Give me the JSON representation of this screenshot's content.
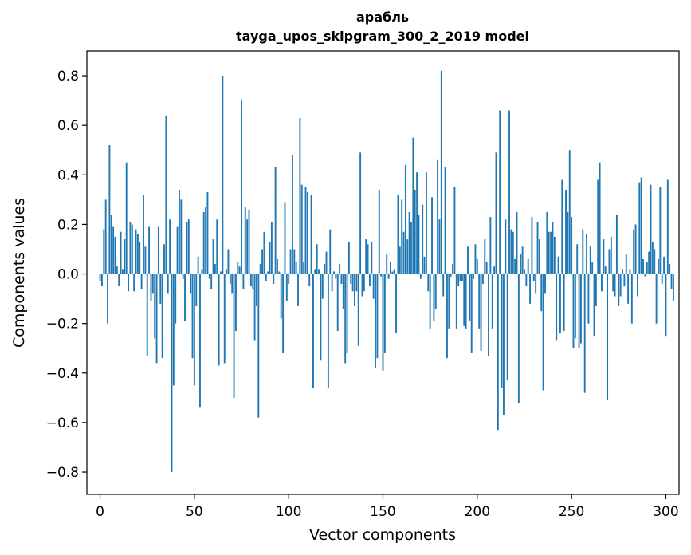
{
  "chart_data": {
    "type": "bar",
    "title": "арабль",
    "subtitle": "tayga_upos_skipgram_300_2_2019 model",
    "xlabel": "Vector components",
    "ylabel": "Components values",
    "xlim": [
      -7,
      307
    ],
    "ylim": [
      -0.89,
      0.9
    ],
    "xticks": [
      0,
      50,
      100,
      150,
      200,
      250,
      300
    ],
    "xtick_labels": [
      "0",
      "50",
      "100",
      "150",
      "200",
      "250",
      "300"
    ],
    "yticks": [
      -0.8,
      -0.6,
      -0.4,
      -0.2,
      0.0,
      0.2,
      0.4,
      0.6,
      0.8
    ],
    "ytick_labels": [
      "−0.8",
      "−0.6",
      "−0.4",
      "−0.2",
      "0.0",
      "0.2",
      "0.4",
      "0.6",
      "0.8"
    ],
    "grid": false,
    "bar_color": "#1f77b4",
    "series": [
      {
        "values": [
          -0.03,
          -0.05,
          0.18,
          0.3,
          -0.2,
          0.52,
          0.24,
          0.19,
          0.15,
          0.03,
          -0.05,
          0.17,
          0.02,
          0.14,
          0.45,
          -0.07,
          0.21,
          0.2,
          -0.07,
          0.18,
          0.16,
          0.13,
          -0.06,
          0.32,
          0.11,
          -0.33,
          0.19,
          -0.11,
          -0.08,
          -0.26,
          -0.36,
          0.19,
          -0.12,
          -0.34,
          0.12,
          0.64,
          -0.08,
          0.22,
          -0.8,
          -0.45,
          -0.2,
          0.19,
          0.34,
          0.3,
          -0.02,
          -0.19,
          0.21,
          0.22,
          -0.08,
          -0.34,
          -0.45,
          -0.13,
          0.07,
          -0.54,
          0.02,
          0.25,
          0.27,
          0.33,
          -0.02,
          -0.06,
          0.14,
          0.04,
          0.22,
          -0.37,
          0.01,
          0.8,
          -0.36,
          0.02,
          0.1,
          -0.04,
          -0.08,
          -0.5,
          -0.23,
          0.05,
          0.03,
          0.7,
          -0.06,
          0.27,
          0.22,
          0.26,
          -0.05,
          -0.06,
          -0.27,
          -0.13,
          -0.58,
          0.04,
          0.1,
          0.17,
          -0.03,
          0.01,
          0.13,
          0.21,
          -0.04,
          0.43,
          0.06,
          0.01,
          -0.18,
          -0.32,
          0.29,
          -0.11,
          -0.04,
          0.1,
          0.48,
          0.1,
          0.05,
          -0.13,
          0.63,
          0.36,
          0.05,
          0.35,
          0.33,
          -0.05,
          0.32,
          -0.46,
          0.02,
          0.12,
          0.02,
          -0.35,
          -0.1,
          0.04,
          0.09,
          -0.46,
          0.18,
          -0.07,
          0.01,
          -0.02,
          -0.23,
          0.04,
          -0.04,
          -0.14,
          -0.36,
          -0.32,
          0.13,
          -0.04,
          -0.07,
          -0.13,
          -0.07,
          -0.29,
          0.49,
          -0.09,
          -0.07,
          0.14,
          0.12,
          -0.05,
          0.13,
          -0.1,
          -0.38,
          -0.34,
          0.34,
          -0.01,
          -0.39,
          -0.32,
          0.08,
          -0.02,
          0.05,
          0.01,
          0.02,
          -0.24,
          0.32,
          0.11,
          0.3,
          0.17,
          0.44,
          0.14,
          0.25,
          0.21,
          0.55,
          0.34,
          0.41,
          0.24,
          -0.02,
          0.28,
          0.07,
          0.41,
          -0.07,
          -0.22,
          0.31,
          -0.19,
          -0.14,
          0.46,
          0.22,
          0.82,
          -0.09,
          0.43,
          -0.34,
          -0.22,
          -0.01,
          0.04,
          0.35,
          -0.22,
          -0.05,
          -0.03,
          -0.03,
          -0.21,
          -0.22,
          0.11,
          -0.19,
          -0.32,
          -0.02,
          0.12,
          0.06,
          -0.22,
          -0.31,
          -0.04,
          0.14,
          0.05,
          -0.33,
          0.23,
          -0.22,
          0.03,
          0.49,
          -0.63,
          0.66,
          -0.46,
          -0.57,
          0.22,
          -0.43,
          0.66,
          0.18,
          0.17,
          0.06,
          0.25,
          -0.52,
          0.08,
          0.11,
          0.02,
          -0.05,
          0.06,
          -0.12,
          0.23,
          -0.03,
          -0.08,
          0.21,
          0.14,
          -0.15,
          -0.47,
          -0.08,
          0.25,
          0.17,
          0.17,
          0.21,
          0.15,
          -0.27,
          0.07,
          -0.24,
          0.38,
          -0.23,
          0.34,
          0.25,
          0.5,
          0.23,
          -0.3,
          -0.26,
          0.12,
          -0.3,
          -0.28,
          0.18,
          -0.48,
          0.16,
          -0.2,
          0.11,
          0.05,
          -0.25,
          -0.13,
          0.38,
          0.45,
          -0.07,
          0.14,
          0.03,
          -0.51,
          0.1,
          0.15,
          -0.07,
          -0.09,
          0.24,
          -0.13,
          -0.09,
          0.02,
          -0.05,
          0.08,
          -0.12,
          0.02,
          -0.2,
          0.18,
          0.2,
          -0.09,
          0.37,
          0.39,
          0.06,
          -0.01,
          0.05,
          0.09,
          0.36,
          0.13,
          0.1,
          -0.2,
          0.06,
          0.35,
          -0.04,
          0.07,
          -0.25,
          0.38,
          0.04,
          -0.06,
          -0.11
        ]
      }
    ]
  }
}
